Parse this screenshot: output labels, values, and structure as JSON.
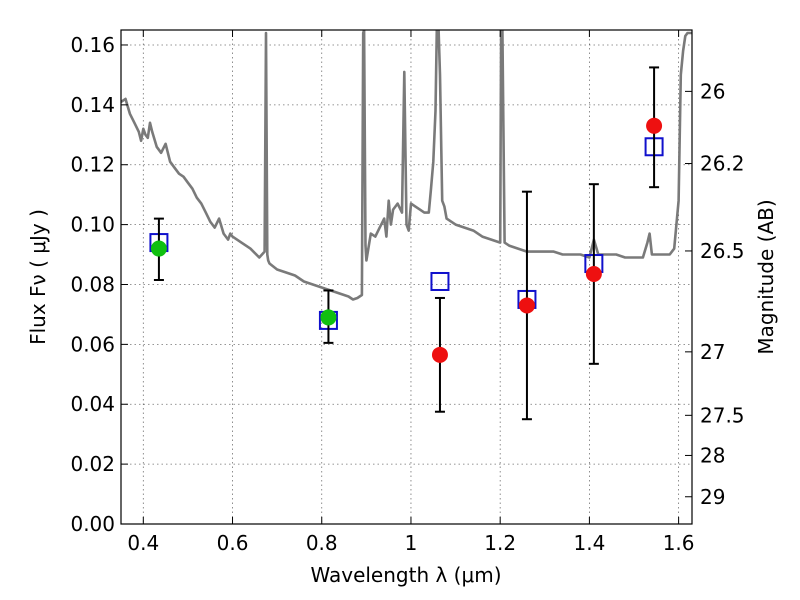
{
  "chart_data": {
    "type": "scatter",
    "xlabel": "Wavelength  λ (μm)",
    "ylabel": "Flux  Fν  ( μJy )",
    "ylabel_right": "Magnitude (AB)",
    "xlim": [
      0.35,
      1.63
    ],
    "ylim": [
      0.0,
      0.165
    ],
    "x_ticks": [
      0.4,
      0.6,
      0.8,
      1.0,
      1.2,
      1.4,
      1.6
    ],
    "x_tick_labels": [
      "0.4",
      "0.6",
      "0.8",
      "1",
      "1.2",
      "1.4",
      "1.6"
    ],
    "y_ticks": [
      0.0,
      0.02,
      0.04,
      0.06,
      0.08,
      0.1,
      0.12,
      0.14,
      0.16
    ],
    "y_tick_labels": [
      "0.00",
      "0.02",
      "0.04",
      "0.06",
      "0.08",
      "0.10",
      "0.12",
      "0.14",
      "0.16"
    ],
    "right_ticks": [
      {
        "label": "26",
        "flux": 0.1445
      },
      {
        "label": "26.2",
        "flux": 0.1204
      },
      {
        "label": "26.5",
        "flux": 0.0912
      },
      {
        "label": "27",
        "flux": 0.0575
      },
      {
        "label": "27.5",
        "flux": 0.0363
      },
      {
        "label": "28",
        "flux": 0.0229
      },
      {
        "label": "29",
        "flux": 0.0091
      }
    ],
    "grid": true,
    "series": [
      {
        "kind": "line",
        "color": "#7a7a7a",
        "x": [
          0.35,
          0.36,
          0.37,
          0.38,
          0.39,
          0.395,
          0.4,
          0.405,
          0.41,
          0.415,
          0.42,
          0.43,
          0.44,
          0.45,
          0.46,
          0.47,
          0.48,
          0.49,
          0.5,
          0.51,
          0.52,
          0.53,
          0.54,
          0.55,
          0.56,
          0.57,
          0.58,
          0.59,
          0.595,
          0.6,
          0.62,
          0.64,
          0.66,
          0.672,
          0.675,
          0.678,
          0.68,
          0.683,
          0.7,
          0.72,
          0.74,
          0.76,
          0.78,
          0.8,
          0.82,
          0.84,
          0.86,
          0.87,
          0.88,
          0.89,
          0.893,
          0.895,
          0.898,
          0.9,
          0.91,
          0.92,
          0.93,
          0.94,
          0.945,
          0.95,
          0.955,
          0.96,
          0.97,
          0.98,
          0.985,
          0.99,
          0.995,
          1.0,
          1.01,
          1.02,
          1.03,
          1.04,
          1.045,
          1.05,
          1.055,
          1.058,
          1.062,
          1.065,
          1.068,
          1.07,
          1.075,
          1.08,
          1.09,
          1.1,
          1.12,
          1.14,
          1.16,
          1.18,
          1.2,
          1.202,
          1.205,
          1.21,
          1.22,
          1.24,
          1.26,
          1.28,
          1.3,
          1.32,
          1.34,
          1.36,
          1.38,
          1.4,
          1.41,
          1.42,
          1.44,
          1.46,
          1.48,
          1.5,
          1.52,
          1.53,
          1.535,
          1.54,
          1.56,
          1.58,
          1.59,
          1.6,
          1.605,
          1.61,
          1.615,
          1.62,
          1.63
        ],
        "y": [
          0.141,
          0.142,
          0.137,
          0.134,
          0.131,
          0.128,
          0.132,
          0.13,
          0.129,
          0.134,
          0.131,
          0.126,
          0.124,
          0.127,
          0.121,
          0.119,
          0.117,
          0.116,
          0.114,
          0.112,
          0.109,
          0.107,
          0.104,
          0.101,
          0.099,
          0.102,
          0.097,
          0.095,
          0.097,
          0.096,
          0.094,
          0.092,
          0.089,
          0.091,
          0.164,
          0.09,
          0.088,
          0.087,
          0.085,
          0.084,
          0.083,
          0.081,
          0.08,
          0.079,
          0.078,
          0.077,
          0.076,
          0.075,
          0.0755,
          0.0765,
          0.164,
          0.165,
          0.093,
          0.088,
          0.097,
          0.096,
          0.099,
          0.102,
          0.096,
          0.108,
          0.1,
          0.105,
          0.107,
          0.104,
          0.151,
          0.1,
          0.098,
          0.107,
          0.106,
          0.105,
          0.104,
          0.104,
          0.112,
          0.121,
          0.138,
          0.165,
          0.165,
          0.15,
          0.125,
          0.108,
          0.106,
          0.102,
          0.101,
          0.1,
          0.099,
          0.098,
          0.096,
          0.095,
          0.094,
          0.164,
          0.165,
          0.094,
          0.093,
          0.092,
          0.091,
          0.091,
          0.091,
          0.091,
          0.09,
          0.09,
          0.09,
          0.089,
          0.095,
          0.09,
          0.09,
          0.09,
          0.089,
          0.089,
          0.089,
          0.094,
          0.097,
          0.09,
          0.09,
          0.09,
          0.092,
          0.108,
          0.15,
          0.158,
          0.163,
          0.164,
          0.164
        ]
      },
      {
        "kind": "model",
        "color": "#1010cc",
        "x": [
          0.435,
          0.815,
          1.065,
          1.26,
          1.41,
          1.545
        ],
        "y": [
          0.094,
          0.068,
          0.081,
          0.075,
          0.087,
          0.126
        ]
      },
      {
        "kind": "measured",
        "color": "#10c010",
        "x": [
          0.435,
          0.815
        ],
        "y": [
          0.092,
          0.069
        ],
        "yerr_low": [
          0.0815,
          0.0605
        ],
        "yerr_high": [
          0.102,
          0.078
        ]
      },
      {
        "kind": "measured",
        "color": "#ee1010",
        "x": [
          1.065,
          1.26,
          1.41,
          1.545
        ],
        "y": [
          0.0565,
          0.073,
          0.0835,
          0.133
        ],
        "yerr_low": [
          0.0375,
          0.035,
          0.0535,
          0.1125
        ],
        "yerr_high": [
          0.0755,
          0.111,
          0.1135,
          0.1525
        ]
      }
    ]
  }
}
